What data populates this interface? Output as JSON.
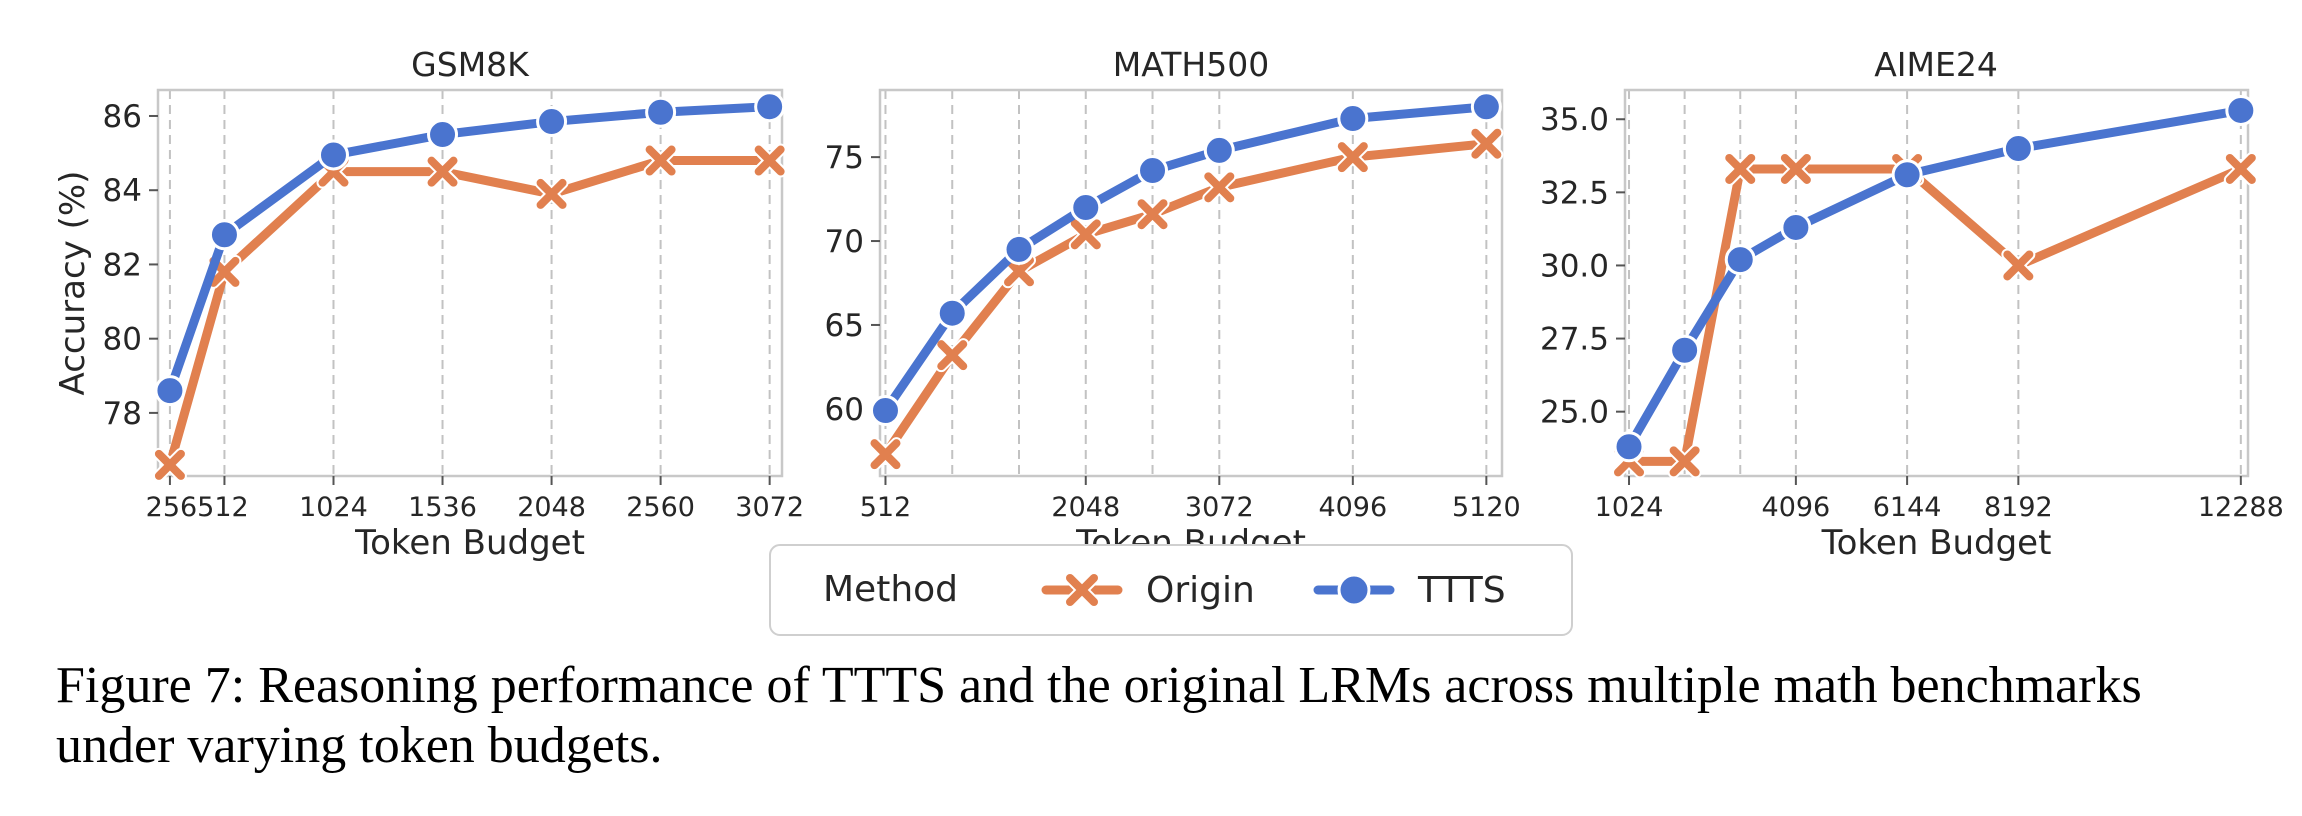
{
  "chart_data": [
    {
      "type": "line",
      "title": "GSM8K",
      "xlabel": "Token Budget",
      "ylabel": "Accuracy (%)",
      "xlim": [
        200,
        3130
      ],
      "ylim": [
        76.3,
        86.7
      ],
      "xticks": [
        256,
        512,
        1024,
        1536,
        2048,
        2560,
        3072
      ],
      "xtick_labels": [
        "256",
        "512",
        "1024",
        "1536",
        "2048",
        "2560",
        "3072"
      ],
      "xtick_label_text": [
        "256512",
        "1024",
        "1536",
        "2048",
        "2560",
        "3072"
      ],
      "yticks": [
        78,
        80,
        82,
        84,
        86
      ],
      "ytick_labels": [
        "78",
        "80",
        "82",
        "84",
        "86"
      ],
      "grid": "vertical dashed",
      "x": [
        256,
        512,
        1024,
        1536,
        2048,
        2560,
        3072
      ],
      "series": [
        {
          "name": "Origin",
          "marker": "x",
          "values": [
            76.6,
            81.8,
            84.5,
            84.5,
            83.9,
            84.8,
            84.8
          ]
        },
        {
          "name": "TTTS",
          "marker": "o",
          "values": [
            78.6,
            82.8,
            84.95,
            85.5,
            85.85,
            86.1,
            86.25
          ]
        }
      ]
    },
    {
      "type": "line",
      "title": "MATH500",
      "xlabel": "Token Budget",
      "ylabel": "",
      "xlim": [
        470,
        5240
      ],
      "ylim": [
        56,
        79
      ],
      "xticks": [
        512,
        2048,
        3072,
        4096,
        5120
      ],
      "xtick_labels": [
        "512",
        "2048",
        "3072",
        "4096",
        "5120"
      ],
      "yticks": [
        60,
        65,
        70,
        75
      ],
      "ytick_labels": [
        "60",
        "65",
        "70",
        "75"
      ],
      "grid": "vertical dashed",
      "grid_x": [
        512,
        1024,
        1536,
        2048,
        2560,
        3072,
        4096,
        5120
      ],
      "x": [
        512,
        1024,
        1536,
        2048,
        2560,
        3072,
        4096,
        5120
      ],
      "series": [
        {
          "name": "Origin",
          "marker": "x",
          "values": [
            57.3,
            63.2,
            68.2,
            70.4,
            71.6,
            73.2,
            75.0,
            75.8
          ]
        },
        {
          "name": "TTTS",
          "marker": "o",
          "values": [
            59.9,
            65.7,
            69.5,
            72.0,
            74.2,
            75.4,
            77.3,
            78.0
          ]
        }
      ]
    },
    {
      "type": "line",
      "title": "AIME24",
      "xlabel": "Token Budget",
      "ylabel": "",
      "xlim": [
        950,
        12420
      ],
      "ylim": [
        22.8,
        36.0
      ],
      "xticks": [
        1024,
        4096,
        6144,
        8192,
        12288
      ],
      "xtick_labels": [
        "1024",
        "4096",
        "6144",
        "8192",
        "12288"
      ],
      "yticks": [
        25.0,
        27.5,
        30.0,
        32.5,
        35.0
      ],
      "ytick_labels": [
        "25.0",
        "27.5",
        "30.0",
        "32.5",
        "35.0"
      ],
      "grid": "vertical dashed",
      "grid_x": [
        1024,
        2048,
        3072,
        4096,
        6144,
        8192,
        12288
      ],
      "x": [
        1024,
        2048,
        3072,
        4096,
        6144,
        8192,
        12288
      ],
      "series": [
        {
          "name": "Origin",
          "marker": "x",
          "values": [
            23.3,
            23.3,
            33.3,
            33.3,
            33.3,
            30.0,
            33.3
          ]
        },
        {
          "name": "TTTS",
          "marker": "o",
          "values": [
            23.8,
            27.1,
            30.2,
            31.3,
            33.1,
            34.0,
            35.3
          ]
        }
      ]
    }
  ],
  "legend": {
    "title": "Method",
    "placement": "bottom-center",
    "entries": [
      {
        "name": "Origin",
        "marker": "x"
      },
      {
        "name": "TTTS",
        "marker": "o"
      }
    ]
  },
  "colors": {
    "origin": "#e1804f",
    "ttts": "#4a74cf",
    "axes": "#c8c8c8",
    "grid": "#c2c2c2",
    "text": "#262626"
  },
  "caption": "Figure 7: Reasoning performance of TTTS and the original LRMs across multiple math benchmarks under varying token budgets."
}
